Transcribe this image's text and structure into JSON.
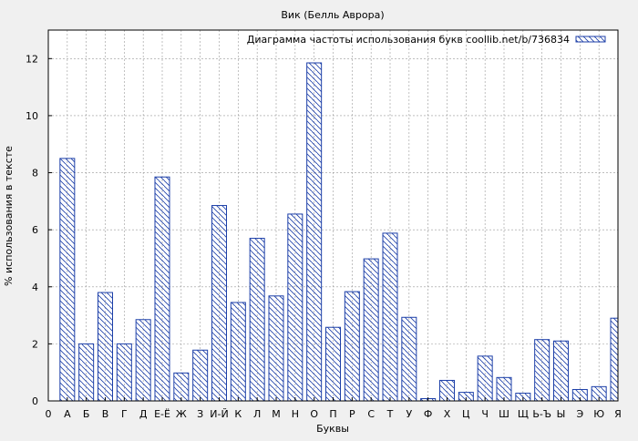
{
  "chart_data": {
    "type": "bar",
    "title": "Вик (Белль Аврора)",
    "xlabel": "Буквы",
    "ylabel": "% использования в тексте",
    "legend": {
      "label": "Диаграмма частоты использования букв coollib.net/b/736834",
      "placement": "top-right"
    },
    "ylim": [
      0,
      13
    ],
    "yticks": [
      0,
      2,
      4,
      6,
      8,
      10,
      12
    ],
    "grid": true,
    "x_tick_labels": [
      "0",
      "А",
      "Б",
      "В",
      "Г",
      "Д",
      "Е-Ё",
      "Ж",
      "З",
      "И-Й",
      "К",
      "Л",
      "М",
      "Н",
      "О",
      "П",
      "Р",
      "С",
      "Т",
      "У",
      "Ф",
      "Х",
      "Ц",
      "Ч",
      "Ш",
      "Щ",
      "Ь-Ъ",
      "Ы",
      "Э",
      "Ю",
      "Я"
    ],
    "categories": [
      "А",
      "Б",
      "В",
      "Г",
      "Д",
      "Е-Ё",
      "Ж",
      "З",
      "И-Й",
      "К",
      "Л",
      "М",
      "Н",
      "О",
      "П",
      "Р",
      "С",
      "Т",
      "У",
      "Ф",
      "Х",
      "Ц",
      "Ч",
      "Ш",
      "Щ",
      "Ь-Ъ",
      "Ы",
      "Э",
      "Ю",
      "Я"
    ],
    "values": [
      8.5,
      2.0,
      3.8,
      2.0,
      2.85,
      7.85,
      0.98,
      1.78,
      6.85,
      3.45,
      5.7,
      3.68,
      6.55,
      11.85,
      2.58,
      3.83,
      4.98,
      5.88,
      2.93,
      0.08,
      0.72,
      0.3,
      1.57,
      0.82,
      0.27,
      2.15,
      2.1,
      0.4,
      0.5,
      2.9
    ],
    "colors": {
      "bar_stroke": "#1c3fa8",
      "background": "#f0f0f0",
      "plot_background": "#ffffff",
      "grid": "#999999"
    }
  }
}
